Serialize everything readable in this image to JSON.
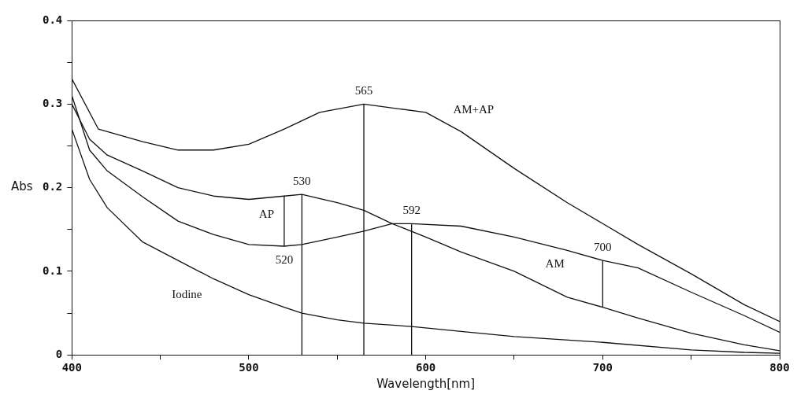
{
  "chart_data": {
    "type": "line",
    "xlabel": "Wavelength[nm]",
    "ylabel": "Abs",
    "xlim": [
      400,
      800
    ],
    "ylim": [
      0,
      0.4
    ],
    "xticks": [
      400,
      {
        "value": 450,
        "label": null
      },
      500,
      {
        "value": 550,
        "label": null
      },
      600,
      {
        "value": 650,
        "label": null
      },
      700,
      {
        "value": 750,
        "label": null
      },
      800
    ],
    "yticks": [
      0,
      {
        "value": 0.05,
        "label": null
      },
      0.1,
      {
        "value": 0.15,
        "label": null
      },
      0.2,
      {
        "value": 0.25,
        "label": null
      },
      0.3,
      {
        "value": 0.35,
        "label": null
      },
      0.4
    ],
    "marker": "none",
    "line_style": "solid",
    "series": [
      {
        "name": "AM+AP",
        "color": "#111111",
        "x": [
          400,
          415,
          440,
          460,
          480,
          500,
          520,
          540,
          565,
          600,
          620,
          650,
          680,
          700,
          720,
          750,
          780,
          800
        ],
        "values": [
          0.33,
          0.27,
          0.255,
          0.245,
          0.245,
          0.252,
          0.27,
          0.29,
          0.3,
          0.29,
          0.267,
          0.223,
          0.182,
          0.157,
          0.132,
          0.097,
          0.06,
          0.04
        ]
      },
      {
        "name": "AP",
        "color": "#111111",
        "x": [
          400,
          410,
          420,
          440,
          460,
          480,
          500,
          520,
          530,
          550,
          565,
          581,
          600,
          620,
          650,
          680,
          700,
          720,
          750,
          780,
          800
        ],
        "values": [
          0.3,
          0.258,
          0.239,
          0.22,
          0.2,
          0.19,
          0.186,
          0.19,
          0.192,
          0.182,
          0.173,
          0.157,
          0.141,
          0.123,
          0.1,
          0.069,
          0.057,
          0.044,
          0.026,
          0.012,
          0.005
        ]
      },
      {
        "name": "AM",
        "color": "#111111",
        "x": [
          400,
          410,
          420,
          440,
          460,
          480,
          500,
          520,
          530,
          550,
          565,
          581,
          592,
          620,
          650,
          680,
          700,
          720,
          750,
          780,
          800
        ],
        "values": [
          0.31,
          0.245,
          0.22,
          0.189,
          0.16,
          0.144,
          0.132,
          0.13,
          0.132,
          0.141,
          0.148,
          0.157,
          0.157,
          0.154,
          0.141,
          0.125,
          0.113,
          0.104,
          0.075,
          0.047,
          0.027
        ]
      },
      {
        "name": "Iodine",
        "color": "#111111",
        "x": [
          400,
          410,
          420,
          440,
          460,
          480,
          500,
          520,
          530,
          550,
          565,
          592,
          620,
          650,
          700,
          750,
          780,
          800
        ],
        "values": [
          0.27,
          0.21,
          0.176,
          0.135,
          0.113,
          0.091,
          0.072,
          0.057,
          0.05,
          0.042,
          0.038,
          0.034,
          0.028,
          0.022,
          0.015,
          0.006,
          0.003,
          0.002
        ]
      },
      {
        "color": "#111111",
        "x": [
          520,
          520
        ],
        "values": [
          0.13,
          0.19
        ]
      },
      {
        "color": "#111111",
        "x": [
          530,
          530
        ],
        "values": [
          0,
          0.192
        ]
      },
      {
        "color": "#111111",
        "x": [
          565,
          565
        ],
        "values": [
          0,
          0.3
        ]
      },
      {
        "color": "#111111",
        "x": [
          592,
          592
        ],
        "values": [
          0,
          0.157
        ]
      },
      {
        "color": "#111111",
        "x": [
          700,
          700
        ],
        "values": [
          0.057,
          0.113
        ]
      }
    ],
    "annotations": [
      {
        "text": "565",
        "x": 565,
        "y": 0.3
      },
      {
        "text": "530",
        "x": 530,
        "y": 0.192
      },
      {
        "text": "520",
        "x": 520,
        "y": 0.13
      },
      {
        "text": "592",
        "x": 592,
        "y": 0.157
      },
      {
        "text": "700",
        "x": 700,
        "y": 0.113
      }
    ]
  }
}
